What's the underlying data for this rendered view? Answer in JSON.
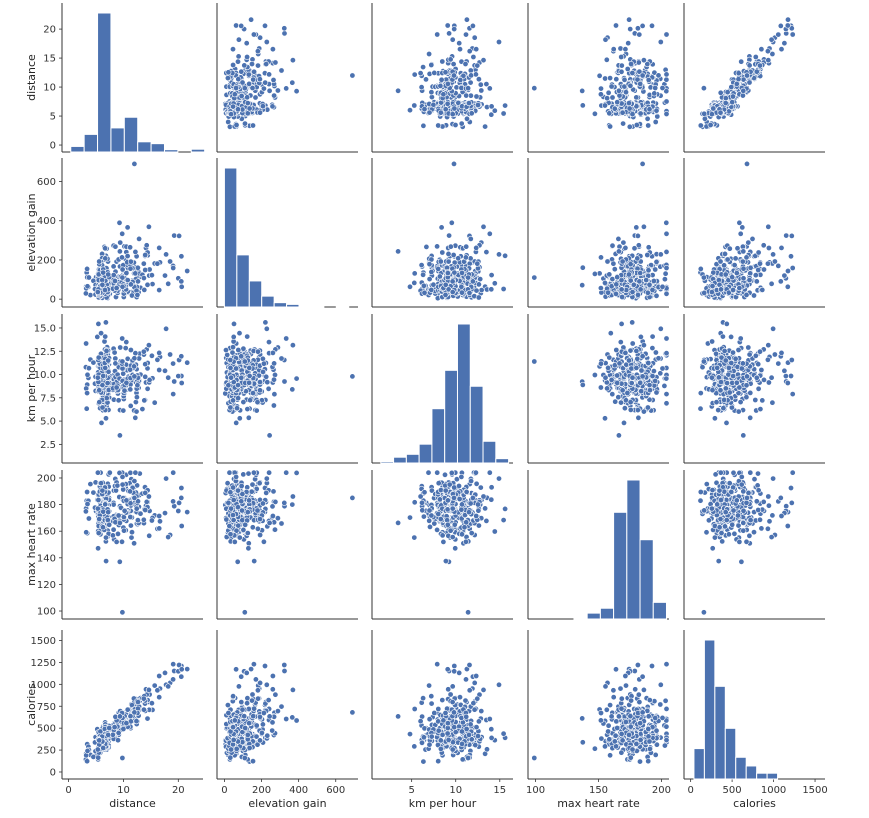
{
  "chart_data": {
    "type": "pairplot",
    "variables": [
      "distance",
      "elevation gain",
      "km per hour",
      "max heart rate",
      "calories"
    ],
    "ranges": {
      "distance": [
        -1.2,
        24.5
      ],
      "elevation gain": [
        -40,
        720
      ],
      "km per hour": [
        0.5,
        16.5
      ],
      "max heart rate": [
        94,
        206
      ],
      "calories": [
        -80,
        1620
      ]
    },
    "ticks": {
      "distance": [
        0,
        10,
        20
      ],
      "elevation gain": [
        0,
        200,
        400,
        600
      ],
      "km per hour": [
        5,
        10,
        15
      ],
      "max heart rate": [
        100,
        150,
        200
      ],
      "calories": [
        0,
        500,
        1000,
        1500
      ]
    },
    "y_ticks": {
      "distance": [
        0,
        5,
        10,
        15,
        20
      ],
      "elevation gain": [
        0,
        200,
        400,
        600
      ],
      "km per hour": [
        2.5,
        5.0,
        7.5,
        10.0,
        12.5,
        15.0
      ],
      "max heart rate": [
        100,
        120,
        140,
        160,
        180,
        200
      ],
      "calories": [
        0,
        250,
        500,
        750,
        1000,
        1250,
        1500
      ]
    },
    "y_tick_labels": {
      "distance": [
        "0",
        "5",
        "10",
        "15",
        "20"
      ],
      "elevation gain": [
        "0",
        "200",
        "400",
        "600"
      ],
      "km per hour": [
        "2.5",
        "5.0",
        "7.5",
        "10.0",
        "12.5",
        "15.0"
      ],
      "max heart rate": [
        "100",
        "120",
        "140",
        "160",
        "180",
        "200"
      ],
      "calories": [
        "0",
        "250",
        "500",
        "750",
        "1000",
        "1250",
        "1500"
      ]
    },
    "histograms": {
      "distance": {
        "edges": [
          0.4,
          2.84,
          5.28,
          7.72,
          10.16,
          12.6,
          15.04,
          17.48,
          19.92,
          22.36,
          24.8
        ],
        "counts": [
          12,
          38,
          300,
          52,
          75,
          22,
          18,
          5,
          0,
          6
        ]
      },
      "elevation gain": {
        "edges": [
          0,
          67,
          134,
          201,
          268,
          335,
          402,
          469,
          536,
          603,
          670
        ],
        "counts": [
          320,
          120,
          60,
          25,
          10,
          6,
          1,
          2,
          0,
          1
        ]
      },
      "km per hour": {
        "edges": [
          1.5,
          2.95,
          4.4,
          5.85,
          7.3,
          8.75,
          10.2,
          11.65,
          13.1,
          14.55,
          16.0
        ],
        "counts": [
          2,
          8,
          12,
          26,
          75,
          128,
          192,
          106,
          30,
          6
        ]
      },
      "max heart rate": {
        "edges": [
          99,
          109.5,
          120,
          130.5,
          141,
          151.5,
          162,
          172.5,
          183,
          193.5,
          204
        ],
        "counts": [
          0,
          0,
          0,
          1,
          6,
          11,
          109,
          142,
          81,
          17
        ]
      },
      "calories": {
        "edges": [
          40,
          166,
          292,
          418,
          544,
          670,
          796,
          922,
          1048,
          1174,
          1300
        ],
        "counts": [
          42,
          192,
          128,
          70,
          30,
          18,
          8,
          8,
          0,
          0
        ]
      }
    },
    "color": "#4c72b0"
  }
}
